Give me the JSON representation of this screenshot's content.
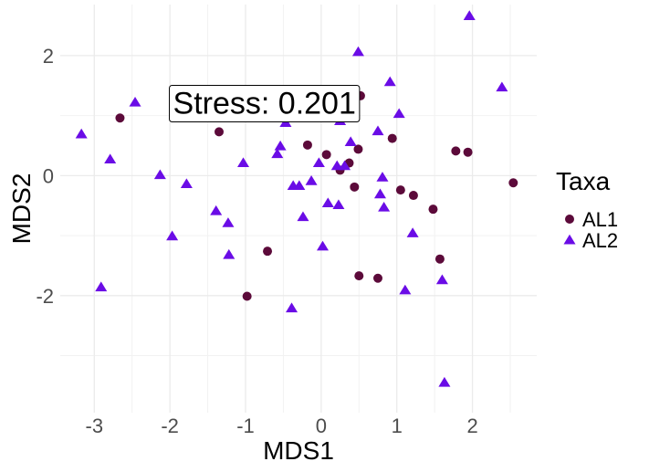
{
  "chart_data": {
    "type": "scatter",
    "title": "",
    "xlabel": "MDS1",
    "ylabel": "MDS2",
    "xlim": [
      -3.45,
      2.85
    ],
    "ylim": [
      -3.95,
      2.85
    ],
    "x_ticks": [
      -3,
      -2,
      -1,
      0,
      1,
      2
    ],
    "y_ticks": [
      -2,
      0,
      2
    ],
    "x_tick_labels": [
      "-3",
      "-2",
      "-1",
      "0",
      "1",
      "2"
    ],
    "y_tick_labels": [
      "-2",
      "0",
      "2"
    ],
    "grid": true,
    "legend": {
      "title": "Taxa",
      "position": "right"
    },
    "annotation": {
      "text": "Stress:  0.201",
      "x": -0.75,
      "y": 1.2
    },
    "series": [
      {
        "name": "AL1",
        "marker": "circle",
        "color": "#5c0a3a",
        "points": [
          [
            -2.66,
            0.96
          ],
          [
            -1.35,
            0.73
          ],
          [
            -0.98,
            -2.01
          ],
          [
            -0.71,
            -1.26
          ],
          [
            -0.18,
            0.51
          ],
          [
            0.07,
            0.35
          ],
          [
            0.25,
            0.09
          ],
          [
            0.37,
            0.21
          ],
          [
            0.44,
            -0.19
          ],
          [
            0.49,
            0.44
          ],
          [
            0.52,
            1.33
          ],
          [
            0.5,
            -1.67
          ],
          [
            0.75,
            -1.71
          ],
          [
            0.94,
            0.62
          ],
          [
            1.05,
            -0.24
          ],
          [
            1.22,
            -0.33
          ],
          [
            1.48,
            -0.56
          ],
          [
            1.57,
            -1.39
          ],
          [
            1.78,
            0.41
          ],
          [
            1.94,
            0.39
          ],
          [
            2.54,
            -0.12
          ]
        ]
      },
      {
        "name": "AL2",
        "marker": "triangle",
        "color": "#6a0ce6",
        "points": [
          [
            -3.17,
            0.69
          ],
          [
            -2.91,
            -1.86
          ],
          [
            -2.79,
            0.27
          ],
          [
            -2.46,
            1.22
          ],
          [
            -2.13,
            0.01
          ],
          [
            -1.97,
            -1.01
          ],
          [
            -1.78,
            -0.14
          ],
          [
            -1.39,
            -0.59
          ],
          [
            -1.23,
            -0.79
          ],
          [
            -1.22,
            -1.32
          ],
          [
            -1.03,
            0.21
          ],
          [
            -0.58,
            0.36
          ],
          [
            -0.54,
            0.49
          ],
          [
            -0.47,
            0.88
          ],
          [
            -0.39,
            -2.21
          ],
          [
            -0.37,
            -0.17
          ],
          [
            -0.29,
            -0.17
          ],
          [
            -0.24,
            -0.69
          ],
          [
            -0.13,
            -0.09
          ],
          [
            -0.09,
            1.02
          ],
          [
            -0.03,
            0.21
          ],
          [
            0.02,
            -1.18
          ],
          [
            0.09,
            -0.46
          ],
          [
            0.21,
            0.16
          ],
          [
            0.23,
            -0.49
          ],
          [
            0.25,
            0.91
          ],
          [
            0.31,
            0.16
          ],
          [
            0.39,
            0.56
          ],
          [
            0.49,
            2.06
          ],
          [
            0.75,
            0.74
          ],
          [
            0.78,
            -0.31
          ],
          [
            0.81,
            -0.03
          ],
          [
            0.83,
            -0.53
          ],
          [
            0.91,
            1.56
          ],
          [
            1.03,
            1.03
          ],
          [
            1.11,
            -1.91
          ],
          [
            1.21,
            -0.96
          ],
          [
            1.6,
            -1.74
          ],
          [
            1.63,
            -3.45
          ],
          [
            1.96,
            2.66
          ],
          [
            2.39,
            1.47
          ]
        ]
      }
    ]
  }
}
